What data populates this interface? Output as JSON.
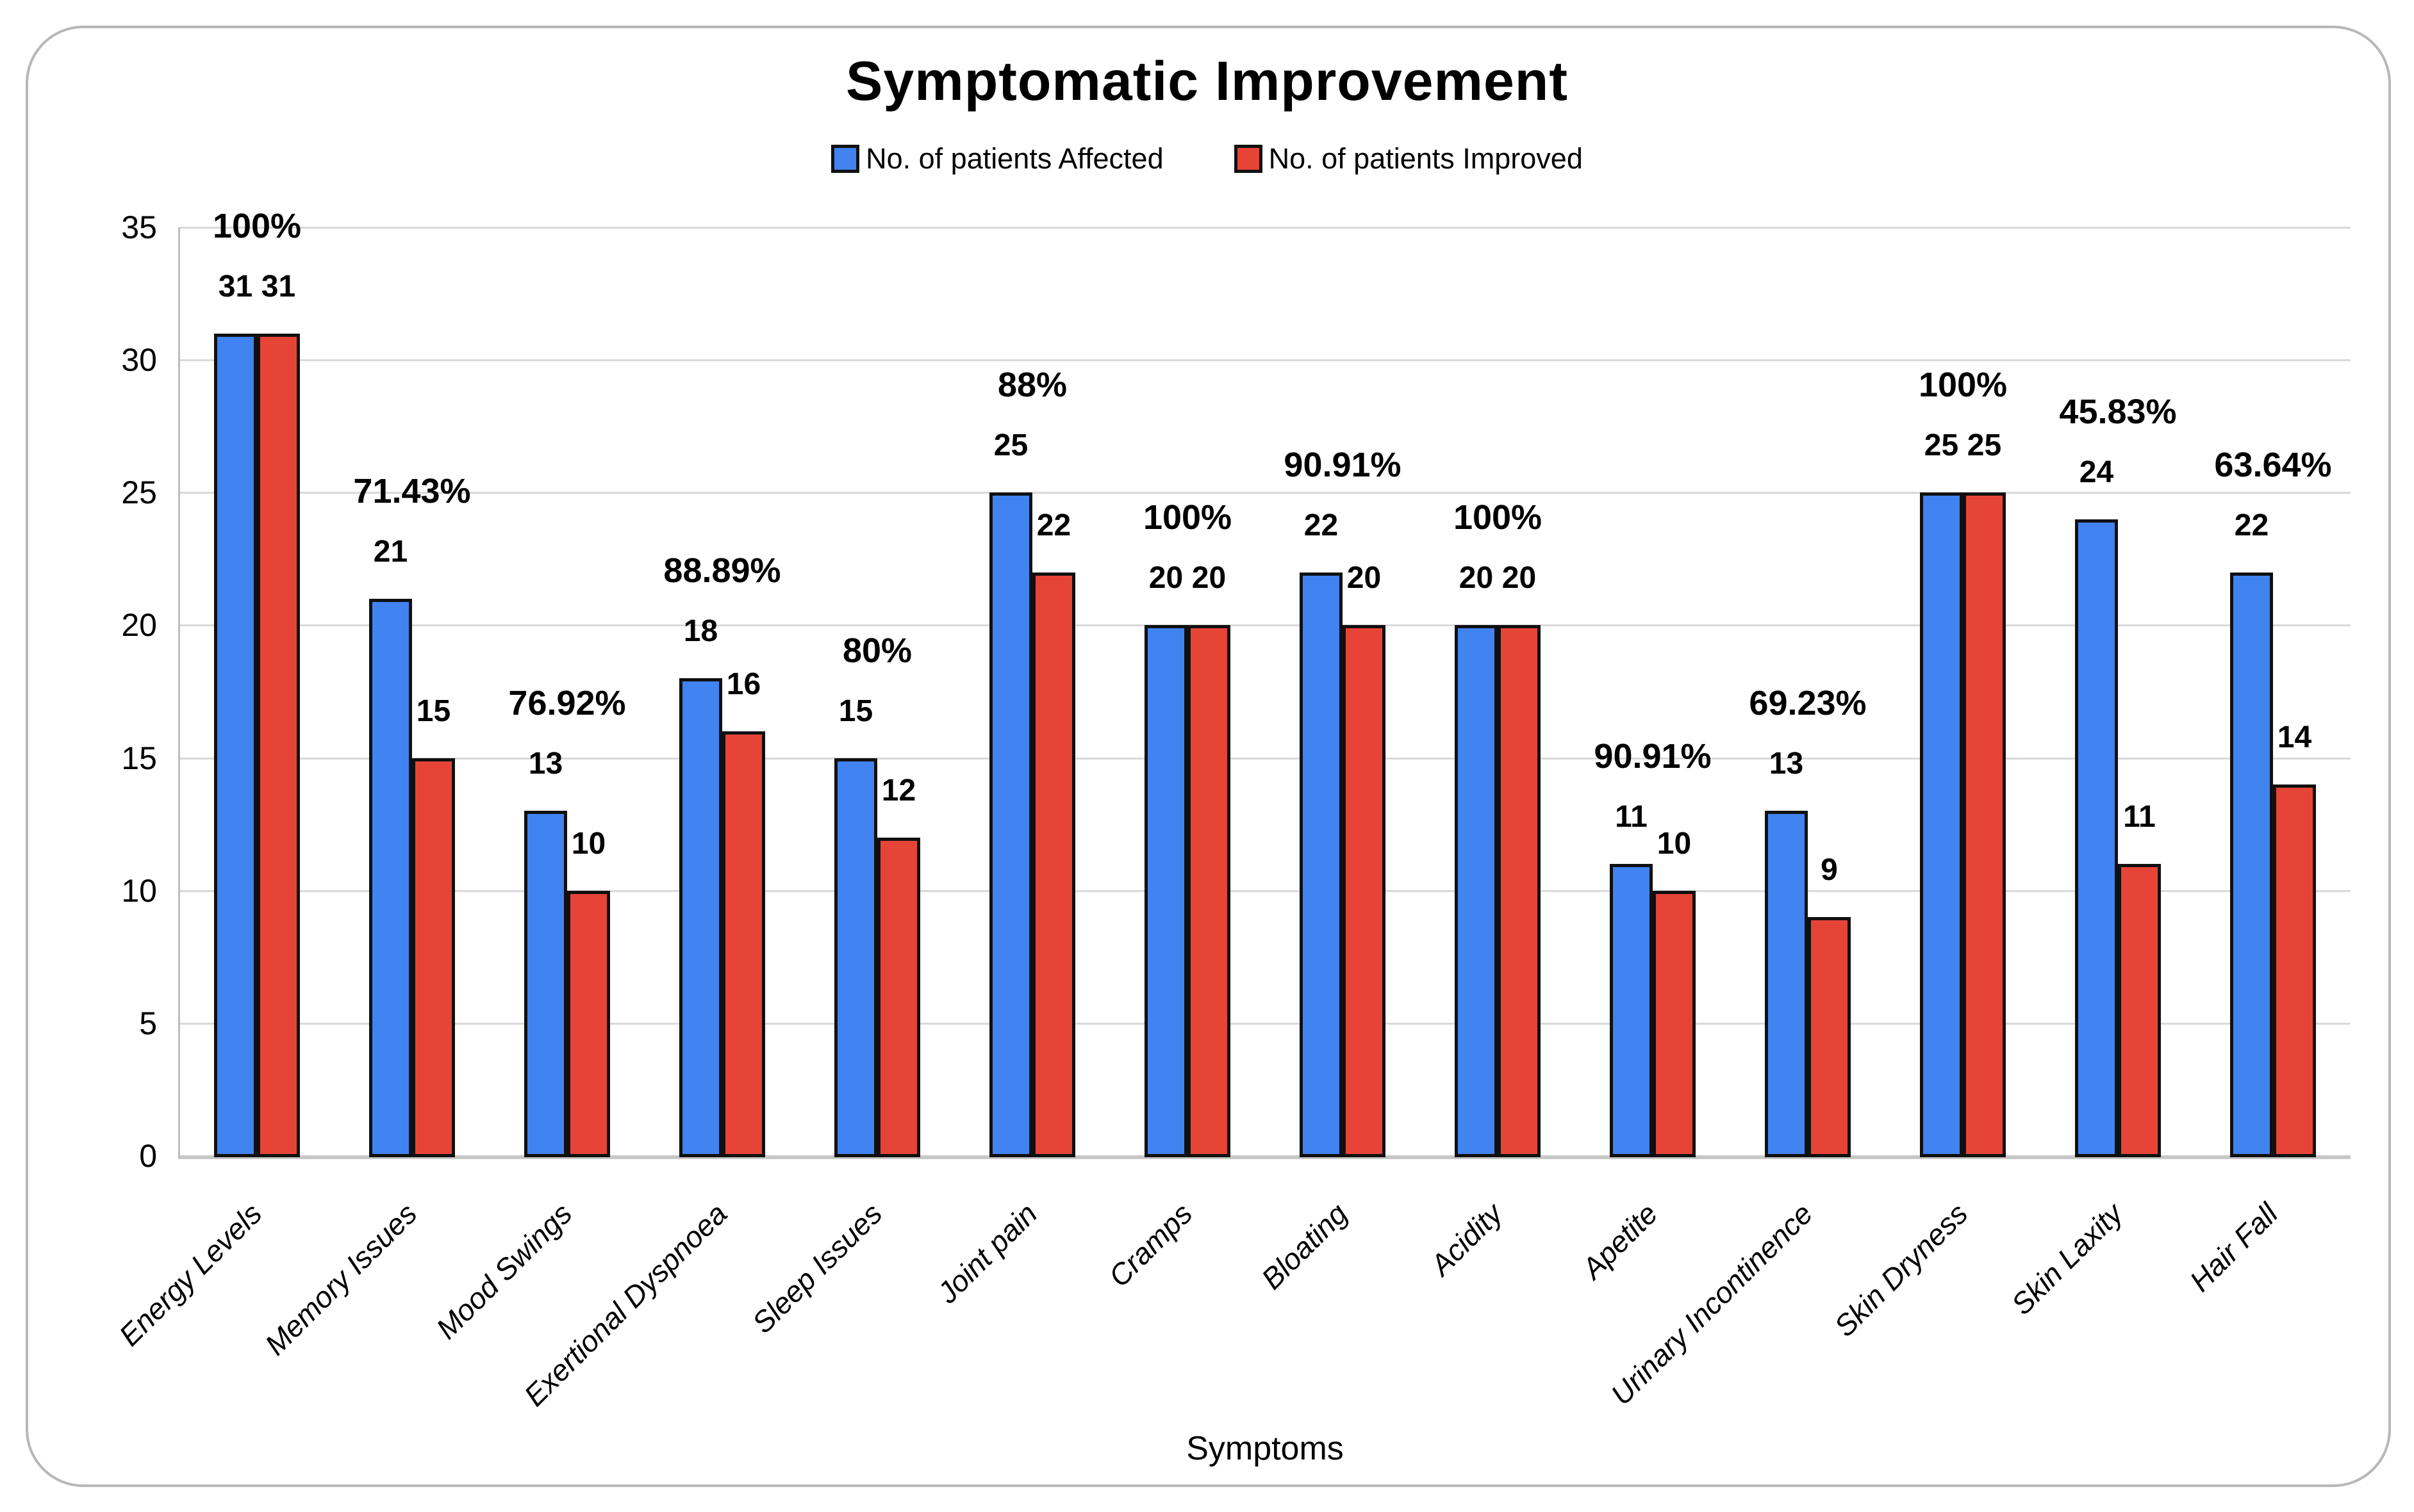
{
  "title": "Symptomatic Improvement",
  "x_axis_title": "Symptoms",
  "legend": {
    "affected_label": "No. of patients Affected",
    "improved_label": "No. of patients Improved"
  },
  "colors": {
    "affected": "#4183F0",
    "improved": "#E74438",
    "bar_stroke": "#101010",
    "gridline": "#D9D9D9",
    "frame_border": "#B7B7B7"
  },
  "chart_data": {
    "type": "bar",
    "title": "Symptomatic Improvement",
    "xlabel": "Symptoms",
    "ylabel": "",
    "ylim": [
      0,
      35
    ],
    "yticks": [
      0,
      5,
      10,
      15,
      20,
      25,
      30,
      35
    ],
    "grid": true,
    "legend_position": "top",
    "categories": [
      "Energy Levels",
      "Memory Issues",
      "Mood Swings",
      "Exertional Dyspnoea",
      "Sleep Issues",
      "Joint pain",
      "Cramps",
      "Bloating",
      "Acidity",
      "Apetite",
      "Urinary Incontinence",
      "Skin Dryness",
      "Skin Laxity",
      "Hair Fall"
    ],
    "series": [
      {
        "name": "No. of patients Affected",
        "color": "#4183F0",
        "values": [
          31,
          21,
          13,
          18,
          15,
          25,
          20,
          22,
          20,
          11,
          13,
          25,
          24,
          22
        ]
      },
      {
        "name": "No. of patients Improved",
        "color": "#E74438",
        "values": [
          31,
          15,
          10,
          16,
          12,
          22,
          20,
          20,
          20,
          10,
          9,
          25,
          11,
          14
        ]
      }
    ],
    "percent_labels": [
      "100%",
      "71.43%",
      "76.92%",
      "88.89%",
      "80%",
      "88%",
      "100%",
      "90.91%",
      "100%",
      "90.91%",
      "69.23%",
      "100%",
      "45.83%",
      "63.64%"
    ]
  }
}
